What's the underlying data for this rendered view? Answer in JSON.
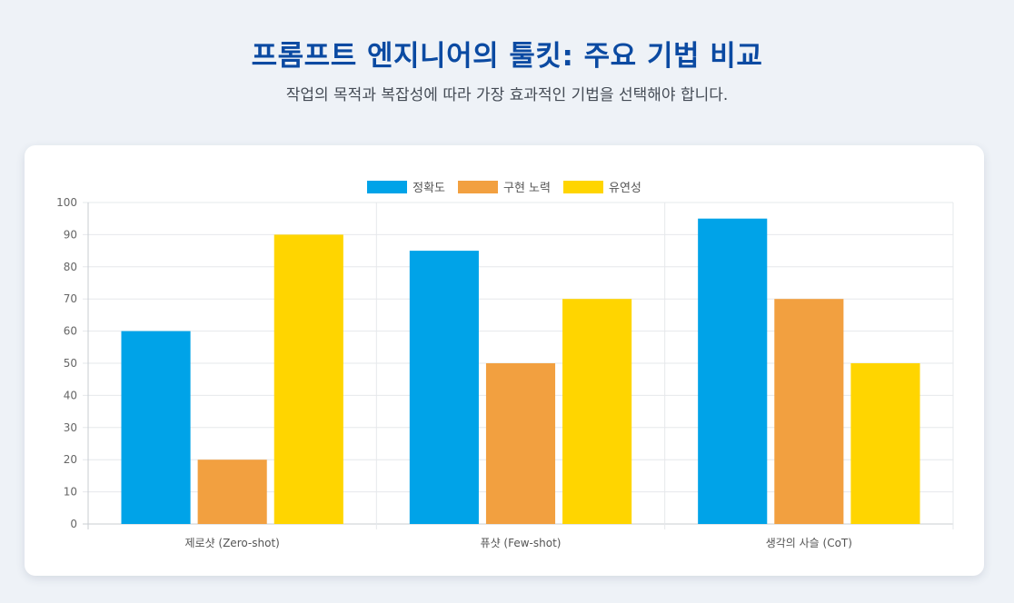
{
  "header": {
    "title": "프롬프트 엔지니어의 툴킷: 주요 기법 비교",
    "subtitle": "작업의 목적과 복잡성에 따라 가장 효과적인 기법을 선택해야 합니다."
  },
  "chart_data": {
    "type": "bar",
    "categories": [
      "제로샷 (Zero-shot)",
      "퓨샷 (Few-shot)",
      "생각의 사슬 (CoT)"
    ],
    "series": [
      {
        "name": "정확도",
        "values": [
          60,
          85,
          95
        ],
        "color": "#00a3e8"
      },
      {
        "name": "구현 노력",
        "values": [
          20,
          50,
          70
        ],
        "color": "#f2a040"
      },
      {
        "name": "유연성",
        "values": [
          90,
          70,
          50
        ],
        "color": "#ffd500"
      }
    ],
    "ylim": [
      0,
      100
    ],
    "yticks": [
      0,
      10,
      20,
      30,
      40,
      50,
      60,
      70,
      80,
      90,
      100
    ],
    "grid": true,
    "legend": "top-center"
  }
}
